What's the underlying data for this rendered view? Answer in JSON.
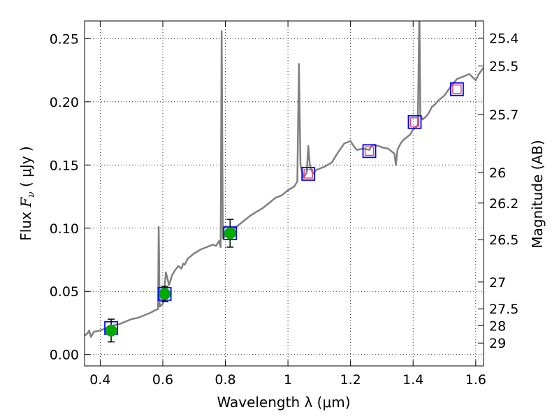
{
  "chart_data": {
    "type": "line",
    "xlabel": "Wavelength  λ (μm)",
    "ylabel_prefix": "Flux  ",
    "ylabel_symbol": "F",
    "ylabel_subscript": "ν",
    "ylabel_unit": "  ( μJy )",
    "y2label": "Magnitude (AB)",
    "xlim": [
      0.35,
      1.625
    ],
    "ylim": [
      -0.009,
      0.264
    ],
    "grid": true,
    "x_ticks": [
      0.4,
      0.6,
      0.8,
      1.0,
      1.2,
      1.4,
      1.6
    ],
    "x_tick_labels": [
      "0.4",
      "0.6",
      "0.8",
      "1",
      "1.2",
      "1.4",
      "1.6"
    ],
    "y_ticks": [
      0.0,
      0.05,
      0.1,
      0.15,
      0.2,
      0.25
    ],
    "y_tick_labels": [
      "0.00",
      "0.05",
      "0.10",
      "0.15",
      "0.20",
      "0.25"
    ],
    "mag_ticks": [
      {
        "label": "25.4",
        "flux": 0.2504
      },
      {
        "label": "25.5",
        "flux": 0.2284
      },
      {
        "label": "25.7",
        "flux": 0.19
      },
      {
        "label": "26",
        "flux": 0.1441
      },
      {
        "label": "26.2",
        "flux": 0.1199
      },
      {
        "label": "26.5",
        "flux": 0.0909
      },
      {
        "label": "27",
        "flux": 0.0574
      },
      {
        "label": "27.5",
        "flux": 0.0362
      },
      {
        "label": "28",
        "flux": 0.0229
      },
      {
        "label": "29",
        "flux": 0.0091
      }
    ],
    "series": [
      {
        "kind": "model_spectrum",
        "color": "#808080",
        "points": [
          [
            0.35,
            0.015
          ],
          [
            0.36,
            0.017
          ],
          [
            0.365,
            0.019
          ],
          [
            0.37,
            0.014
          ],
          [
            0.38,
            0.018
          ],
          [
            0.4,
            0.019
          ],
          [
            0.42,
            0.021
          ],
          [
            0.44,
            0.023
          ],
          [
            0.46,
            0.024
          ],
          [
            0.48,
            0.026
          ],
          [
            0.5,
            0.028
          ],
          [
            0.52,
            0.029
          ],
          [
            0.54,
            0.031
          ],
          [
            0.56,
            0.033
          ],
          [
            0.575,
            0.035
          ],
          [
            0.585,
            0.036
          ],
          [
            0.587,
            0.101
          ],
          [
            0.59,
            0.038
          ],
          [
            0.6,
            0.04
          ],
          [
            0.605,
            0.05
          ],
          [
            0.61,
            0.065
          ],
          [
            0.615,
            0.06
          ],
          [
            0.62,
            0.055
          ],
          [
            0.63,
            0.063
          ],
          [
            0.64,
            0.067
          ],
          [
            0.65,
            0.07
          ],
          [
            0.66,
            0.068
          ],
          [
            0.665,
            0.072
          ],
          [
            0.67,
            0.071
          ],
          [
            0.68,
            0.076
          ],
          [
            0.7,
            0.08
          ],
          [
            0.72,
            0.083
          ],
          [
            0.74,
            0.085
          ],
          [
            0.76,
            0.087
          ],
          [
            0.77,
            0.086
          ],
          [
            0.78,
            0.09
          ],
          [
            0.785,
            0.085
          ],
          [
            0.788,
            0.256
          ],
          [
            0.792,
            0.092
          ],
          [
            0.8,
            0.094
          ],
          [
            0.81,
            0.096
          ],
          [
            0.82,
            0.098
          ],
          [
            0.84,
            0.102
          ],
          [
            0.86,
            0.106
          ],
          [
            0.88,
            0.11
          ],
          [
            0.9,
            0.113
          ],
          [
            0.92,
            0.116
          ],
          [
            0.93,
            0.118
          ],
          [
            0.94,
            0.12
          ],
          [
            0.96,
            0.124
          ],
          [
            0.98,
            0.126
          ],
          [
            1.0,
            0.13
          ],
          [
            1.02,
            0.133
          ],
          [
            1.03,
            0.137
          ],
          [
            1.035,
            0.23
          ],
          [
            1.04,
            0.15
          ],
          [
            1.05,
            0.14
          ],
          [
            1.06,
            0.144
          ],
          [
            1.065,
            0.165
          ],
          [
            1.07,
            0.15
          ],
          [
            1.08,
            0.143
          ],
          [
            1.09,
            0.146
          ],
          [
            1.1,
            0.147
          ],
          [
            1.12,
            0.149
          ],
          [
            1.14,
            0.152
          ],
          [
            1.16,
            0.16
          ],
          [
            1.18,
            0.167
          ],
          [
            1.2,
            0.169
          ],
          [
            1.21,
            0.165
          ],
          [
            1.22,
            0.162
          ],
          [
            1.24,
            0.163
          ],
          [
            1.26,
            0.162
          ],
          [
            1.27,
            0.166
          ],
          [
            1.29,
            0.165
          ],
          [
            1.3,
            0.164
          ],
          [
            1.32,
            0.163
          ],
          [
            1.34,
            0.159
          ],
          [
            1.345,
            0.15
          ],
          [
            1.35,
            0.162
          ],
          [
            1.36,
            0.167
          ],
          [
            1.37,
            0.17
          ],
          [
            1.38,
            0.172
          ],
          [
            1.39,
            0.174
          ],
          [
            1.4,
            0.178
          ],
          [
            1.41,
            0.18
          ],
          [
            1.415,
            0.182
          ],
          [
            1.42,
            0.275
          ],
          [
            1.423,
            0.19
          ],
          [
            1.43,
            0.186
          ],
          [
            1.44,
            0.188
          ],
          [
            1.45,
            0.191
          ],
          [
            1.46,
            0.196
          ],
          [
            1.47,
            0.198
          ],
          [
            1.48,
            0.201
          ],
          [
            1.5,
            0.205
          ],
          [
            1.52,
            0.212
          ],
          [
            1.54,
            0.218
          ],
          [
            1.56,
            0.22
          ],
          [
            1.58,
            0.222
          ],
          [
            1.6,
            0.217
          ],
          [
            1.61,
            0.222
          ],
          [
            1.625,
            0.227
          ]
        ]
      },
      {
        "kind": "synthetic_photometry",
        "marker": "open square",
        "color": "#0000ff",
        "points": [
          [
            0.435,
            0.021
          ],
          [
            0.606,
            0.048
          ],
          [
            0.815,
            0.096
          ],
          [
            1.065,
            0.143
          ],
          [
            1.26,
            0.161
          ],
          [
            1.405,
            0.184
          ],
          [
            1.54,
            0.21
          ]
        ]
      },
      {
        "kind": "observed_photometry",
        "marker": "filled circle with error bar",
        "color": "#00aa00",
        "points": [
          [
            0.435,
            0.019,
            0.009
          ],
          [
            0.606,
            0.048,
            0.006
          ],
          [
            0.815,
            0.096,
            0.011
          ]
        ]
      },
      {
        "kind": "upper_limits",
        "marker": "small open square",
        "color": "#e0436b",
        "points": [
          [
            1.065,
            0.143
          ],
          [
            1.26,
            0.161
          ],
          [
            1.405,
            0.184
          ],
          [
            1.54,
            0.21
          ]
        ]
      }
    ]
  }
}
